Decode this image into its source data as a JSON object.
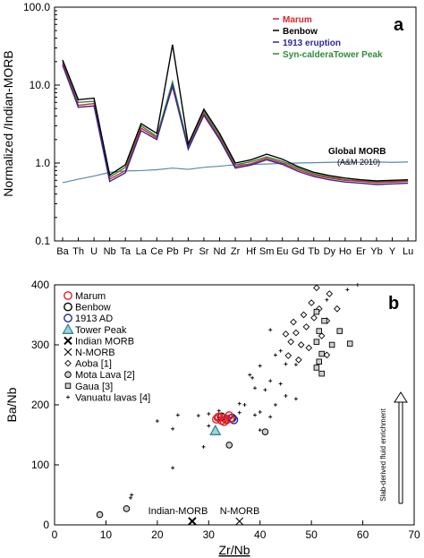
{
  "colors": {
    "marum": "#e0202a",
    "benbow": "#000000",
    "eruption1913": "#2a2a9a",
    "tower": "#2e8b3a",
    "global": "#5b87b5",
    "tower_fill": "#a8d0d6",
    "tower_stroke": "#2a8a95"
  },
  "chart_data": [
    {
      "type": "line",
      "panel_label": "a",
      "ylabel": "Normalized /Indian-MORB",
      "yscale": "log",
      "ylim": [
        0.1,
        100
      ],
      "y_ticks": [
        "0.1",
        "1.0",
        "10.0",
        "100.0"
      ],
      "categories": [
        "Ba",
        "Th",
        "U",
        "Nb",
        "Ta",
        "La",
        "Ce",
        "Pb",
        "Pr",
        "Sr",
        "Nd",
        "Zr",
        "Hf",
        "Sm",
        "Eu",
        "Gd",
        "Tb",
        "Dy",
        "Ho",
        "Er",
        "Yb",
        "Y",
        "Lu"
      ],
      "series": [
        {
          "name": "Marum",
          "color": "#e0202a",
          "values": [
            19,
            5.5,
            5.8,
            0.62,
            0.8,
            2.8,
            2.1,
            9.5,
            1.55,
            4.3,
            2.1,
            0.9,
            0.98,
            1.15,
            1.0,
            0.82,
            0.7,
            0.64,
            0.6,
            0.58,
            0.56,
            0.57,
            0.58
          ]
        },
        {
          "name": "Benbow",
          "color": "#000000",
          "values": [
            21,
            6.5,
            6.8,
            0.7,
            0.95,
            3.2,
            2.4,
            33,
            1.75,
            4.9,
            2.4,
            1.0,
            1.1,
            1.3,
            1.12,
            0.9,
            0.76,
            0.69,
            0.64,
            0.61,
            0.59,
            0.6,
            0.61
          ]
        },
        {
          "name": "1913 eruption",
          "color": "#2a2a9a",
          "values": [
            18,
            5.2,
            5.4,
            0.58,
            0.75,
            2.6,
            2.0,
            10,
            1.5,
            4.1,
            2.0,
            0.86,
            0.94,
            1.1,
            0.96,
            0.78,
            0.67,
            0.61,
            0.57,
            0.55,
            0.53,
            0.54,
            0.55
          ]
        },
        {
          "name": "Syn-calderaTower Peak",
          "color": "#2e8b3a",
          "values": [
            20,
            6.0,
            6.2,
            0.66,
            0.88,
            3.0,
            2.2,
            11,
            1.65,
            4.6,
            2.25,
            0.95,
            1.04,
            1.2,
            1.05,
            0.86,
            0.73,
            0.66,
            0.61,
            0.59,
            0.57,
            0.58,
            0.59
          ]
        }
      ],
      "reference": {
        "label": "Global MORB",
        "sublabel": "(A&M 2010)",
        "color": "#5b87b5",
        "values": [
          0.56,
          0.62,
          0.68,
          0.76,
          0.79,
          0.8,
          0.82,
          0.86,
          0.83,
          0.88,
          0.91,
          0.95,
          0.96,
          0.97,
          0.99,
          1.0,
          1.01,
          1.02,
          1.03,
          1.02,
          1.03,
          1.02,
          1.03
        ]
      }
    },
    {
      "type": "scatter",
      "panel_label": "b",
      "xlabel": "Zr/Nb",
      "ylabel": "Ba/Nb",
      "xlim": [
        0,
        70
      ],
      "ylim": [
        0,
        400
      ],
      "x_ticks": [
        0,
        10,
        20,
        30,
        40,
        50,
        60,
        70
      ],
      "y_ticks": [
        0,
        100,
        200,
        300,
        400
      ],
      "annotations": {
        "indian_morb": "Indian-MORB",
        "n_morb": "N-MORB",
        "vertical": "Slab-derived fluid enrichment"
      },
      "legend": [
        {
          "label": "Marum",
          "marker": "circle",
          "color": "#e0202a"
        },
        {
          "label": "Benbow",
          "marker": "circle",
          "color": "#000000"
        },
        {
          "label": "1913 AD",
          "marker": "circle",
          "color": "#2a2a9a"
        },
        {
          "label": "Tower Peak",
          "marker": "triangle",
          "color": "#2a8a95"
        },
        {
          "label": "Indian MORB",
          "marker": "xbold",
          "color": "#000000"
        },
        {
          "label": "N-MORB",
          "marker": "x",
          "color": "#000000"
        },
        {
          "label": "Aoba [1]",
          "marker": "diamond",
          "color": "#000000"
        },
        {
          "label": "Mota Lava [2]",
          "marker": "grey_circle",
          "color": "#000000"
        },
        {
          "label": "Gaua [3]",
          "marker": "square",
          "color": "#000000"
        },
        {
          "label": "Vanuatu lavas [4]",
          "marker": "plus",
          "color": "#000000"
        }
      ],
      "series": [
        {
          "name": "Marum",
          "marker": "circle",
          "color": "#e0202a",
          "points": [
            [
              31.5,
              176
            ],
            [
              32,
              180
            ],
            [
              33,
              178
            ],
            [
              33.5,
              175
            ],
            [
              34,
              182
            ],
            [
              34.2,
              177
            ],
            [
              32.5,
              174
            ],
            [
              33,
              172
            ],
            [
              31.8,
              179
            ]
          ]
        },
        {
          "name": "Benbow",
          "marker": "circle",
          "color": "#000000",
          "points": [
            [
              32.5,
              180
            ],
            [
              33.5,
              176
            ],
            [
              34.5,
              178
            ]
          ]
        },
        {
          "name": "1913 AD",
          "marker": "circle",
          "color": "#2a2a9a",
          "points": [
            [
              34.6,
              178
            ],
            [
              34.9,
              175
            ]
          ]
        },
        {
          "name": "Tower Peak",
          "marker": "triangle",
          "color": "#2a8a95",
          "points": [
            [
              31.3,
              157
            ]
          ]
        },
        {
          "name": "Indian MORB",
          "marker": "xbold",
          "color": "#000000",
          "points": [
            [
              26.8,
              6
            ]
          ]
        },
        {
          "name": "N-MORB",
          "marker": "x",
          "color": "#000000",
          "points": [
            [
              36,
              6
            ]
          ]
        },
        {
          "name": "Aoba [1]",
          "marker": "diamond",
          "color": "#000000",
          "points": [
            [
              51,
              395
            ],
            [
              53.5,
              385
            ],
            [
              50,
              370
            ],
            [
              51.5,
              360
            ],
            [
              55,
              360
            ],
            [
              48.5,
              350
            ],
            [
              50.5,
              345
            ],
            [
              53,
              340
            ],
            [
              46.5,
              338
            ],
            [
              49,
              330
            ],
            [
              47,
              320
            ],
            [
              45,
              318
            ],
            [
              52,
              315
            ],
            [
              46,
              305
            ],
            [
              48,
              300
            ],
            [
              49.5,
              295
            ],
            [
              53,
              283
            ],
            [
              45.5,
              282
            ],
            [
              47.5,
              275
            ]
          ]
        },
        {
          "name": "Mota Lava [2]",
          "marker": "grey_circle",
          "color": "#000000",
          "points": [
            [
              8.8,
              17
            ],
            [
              14,
              27
            ],
            [
              34,
              133
            ],
            [
              41,
              155
            ]
          ]
        },
        {
          "name": "Gaua [3]",
          "marker": "square",
          "color": "#000000",
          "points": [
            [
              51,
              355
            ],
            [
              52.5,
              340
            ],
            [
              51.5,
              323
            ],
            [
              55.5,
              323
            ],
            [
              51,
              305
            ],
            [
              54,
              300
            ],
            [
              52,
              285
            ],
            [
              51.5,
              272
            ],
            [
              51,
              262
            ],
            [
              52,
              252
            ],
            [
              57.5,
              302
            ]
          ]
        },
        {
          "name": "Vanuatu lavas [4]",
          "marker": "plus",
          "color": "#000000",
          "points": [
            [
              59,
              400
            ],
            [
              57,
              392
            ],
            [
              53,
              375
            ],
            [
              42,
              325
            ],
            [
              44,
              290
            ],
            [
              43,
              283
            ],
            [
              45,
              268
            ],
            [
              47,
              267
            ],
            [
              40,
              265
            ],
            [
              38,
              250
            ],
            [
              38.5,
              245
            ],
            [
              42,
              240
            ],
            [
              44,
              235
            ],
            [
              39,
              228
            ],
            [
              41,
              225
            ],
            [
              45,
              215
            ],
            [
              47,
              210
            ],
            [
              43,
              200
            ],
            [
              36,
              202
            ],
            [
              37,
              200
            ],
            [
              40,
              188
            ],
            [
              36,
              187
            ],
            [
              39,
              183
            ],
            [
              42,
              180
            ],
            [
              32,
              190
            ],
            [
              30,
              185
            ],
            [
              28,
              182
            ],
            [
              24,
              183
            ],
            [
              20,
              173
            ],
            [
              30,
              165
            ],
            [
              23,
              160
            ],
            [
              29,
              130
            ],
            [
              40,
              158
            ],
            [
              15,
              50
            ],
            [
              14.8,
              45
            ],
            [
              23,
              95
            ]
          ]
        }
      ]
    }
  ]
}
